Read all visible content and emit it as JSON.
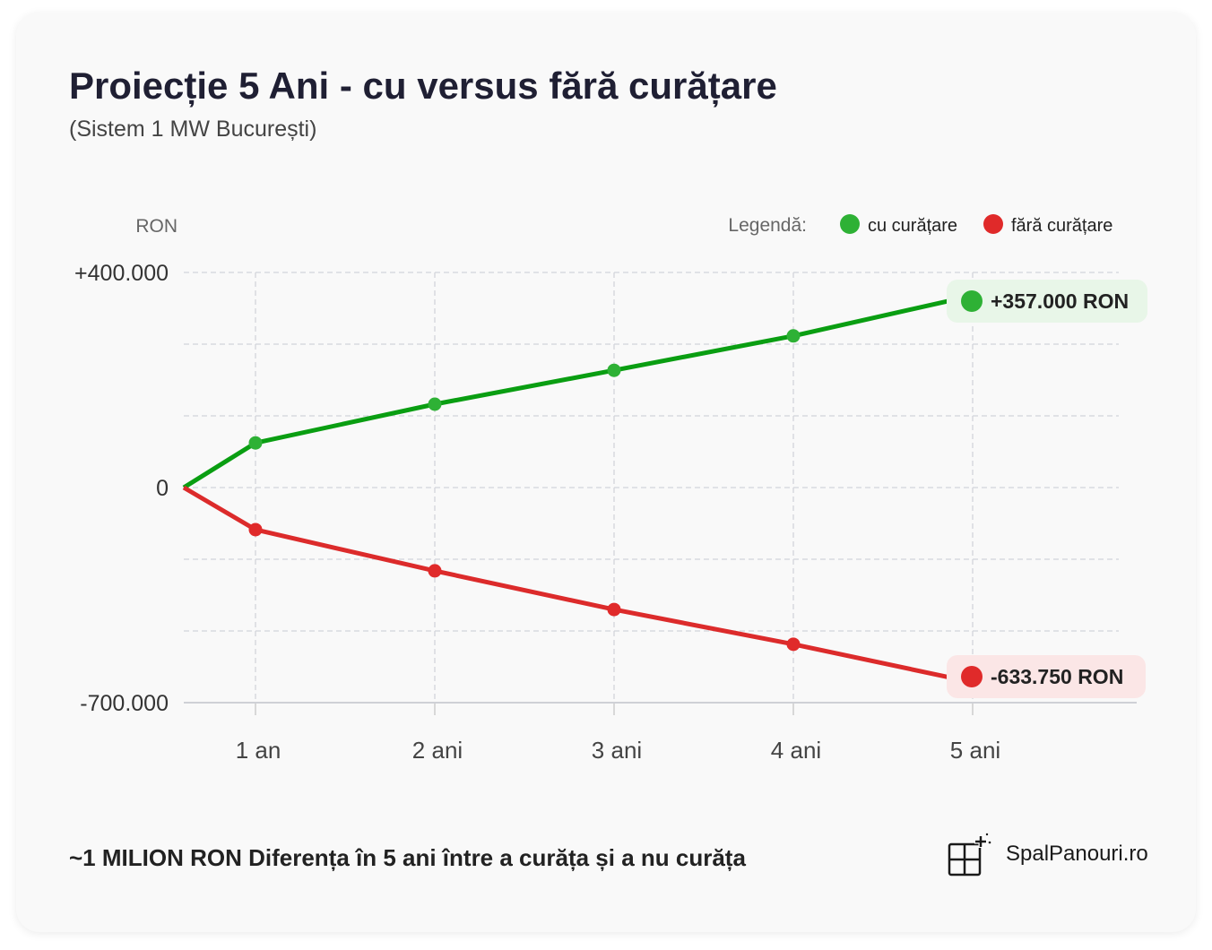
{
  "title": "Proiecție 5 Ani - cu versus fără curățare",
  "subtitle": "(Sistem 1 MW București)",
  "footer": "~1 MILION RON Diferența în 5 ani între a curăța și a nu curăța",
  "brand": "SpalPanouri.ro",
  "chart_data": {
    "type": "line",
    "ylabel": "RON",
    "legend_title": "Legendă:",
    "legend_position": "top-right",
    "grid": true,
    "x": [
      0,
      1,
      2,
      3,
      4,
      5
    ],
    "x_tick_labels": [
      "1 an",
      "2 ani",
      "3 ani",
      "4 ani",
      "5 ani"
    ],
    "y_ticks": [
      400000,
      0,
      -700000
    ],
    "y_tick_labels": [
      "+400.000",
      "0",
      "-700.000"
    ],
    "ylim": [
      -700000,
      400000
    ],
    "series": [
      {
        "name": "cu curățare",
        "color": "#2eb135",
        "line_color": "#0a9e12",
        "values": [
          0,
          83000,
          155000,
          218000,
          282000,
          357000
        ],
        "end_label": "+357.000 RON",
        "end_label_bg": "#e8f6e8"
      },
      {
        "name": "fără curățare",
        "color": "#e02a2a",
        "line_color": "#dc2b2b",
        "values": [
          0,
          -137000,
          -271000,
          -397000,
          -510000,
          -633750
        ],
        "end_label": "-633.750 RON",
        "end_label_bg": "#fbe6e6"
      }
    ]
  }
}
